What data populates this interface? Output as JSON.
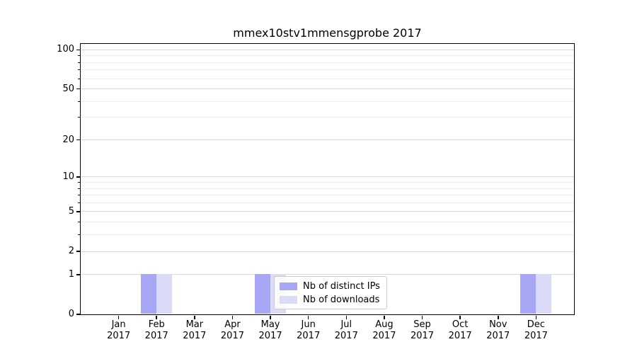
{
  "title": "mmex10stv1mmensgprobe 2017",
  "colors": {
    "distinct_ips": "#a7a7f6",
    "downloads": "#dbdbf8",
    "grid_major": "#d9d9d9",
    "grid_minor": "#efefef",
    "spine": "#000000"
  },
  "legend": {
    "items": [
      {
        "label": "Nb of distinct IPs",
        "color_key": "distinct_ips"
      },
      {
        "label": "Nb of downloads",
        "color_key": "downloads"
      }
    ]
  },
  "chart_data": {
    "type": "bar",
    "title": "mmex10stv1mmensgprobe 2017",
    "categories": [
      "Jan 2017",
      "Feb 2017",
      "Mar 2017",
      "Apr 2017",
      "May 2017",
      "Jun 2017",
      "Jul 2017",
      "Aug 2017",
      "Sep 2017",
      "Oct 2017",
      "Nov 2017",
      "Dec 2017"
    ],
    "series": [
      {
        "name": "Nb of distinct IPs",
        "color": "#a7a7f6",
        "values": [
          0,
          1,
          0,
          0,
          1,
          0,
          0,
          0,
          0,
          0,
          0,
          1
        ]
      },
      {
        "name": "Nb of downloads",
        "color": "#dbdbf8",
        "values": [
          0,
          1,
          0,
          0,
          1,
          0,
          0,
          0,
          0,
          0,
          0,
          1
        ]
      }
    ],
    "xlabel": "",
    "ylabel": "",
    "yscale": "log1p",
    "ylim": [
      0,
      111
    ],
    "y_major_ticks": [
      0,
      1,
      2,
      5,
      10,
      20,
      50,
      100
    ],
    "y_minor_ticks": [
      3,
      4,
      6,
      7,
      8,
      9,
      30,
      40,
      60,
      70,
      80,
      90
    ],
    "grid": "horizontal-only",
    "legend_position": "lower center"
  }
}
